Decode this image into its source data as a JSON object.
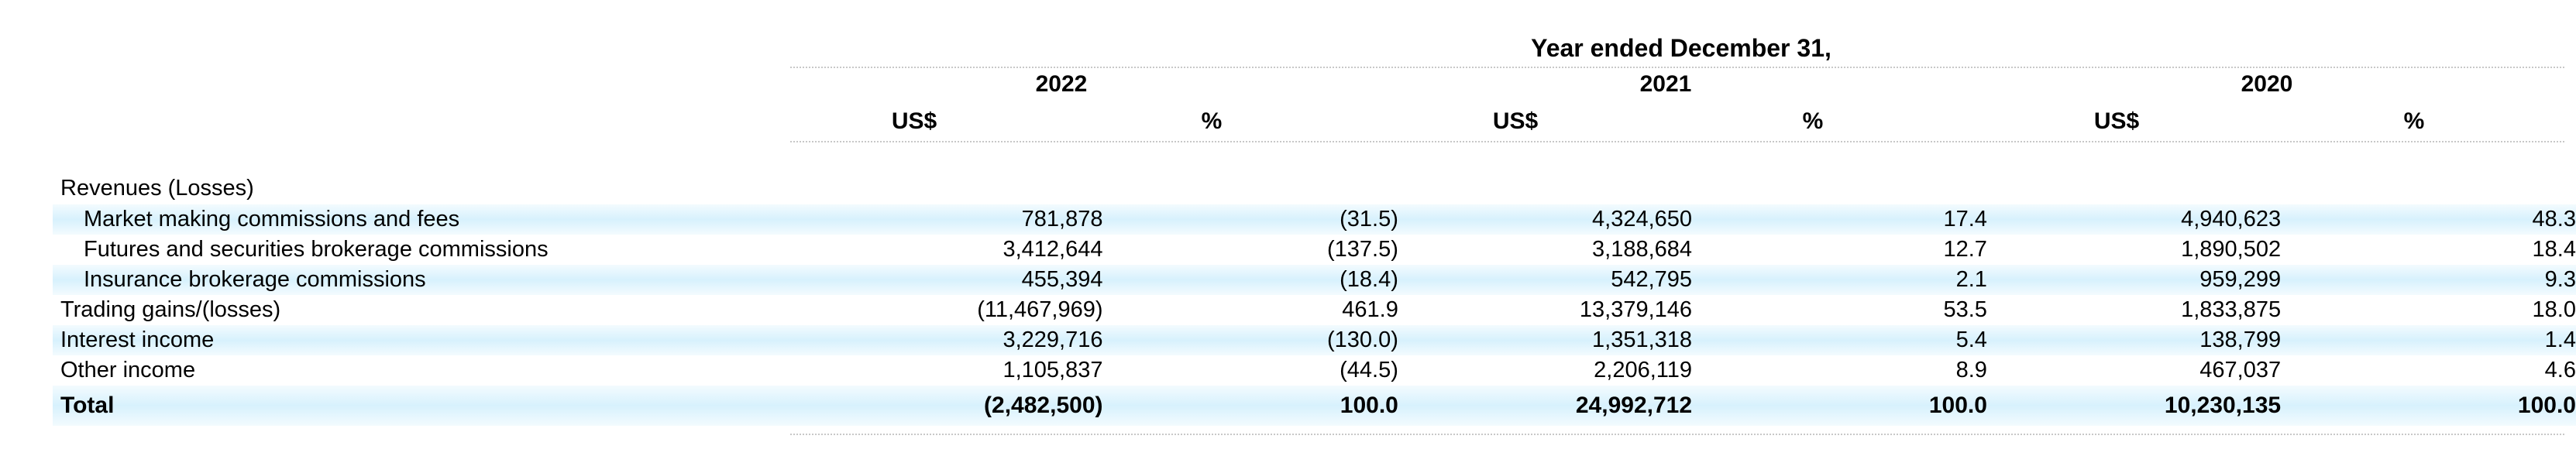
{
  "header": {
    "period": "Year ended December 31,",
    "years": [
      "2022",
      "2021",
      "2020"
    ],
    "units": [
      "US$",
      "%",
      "US$",
      "%",
      "US$",
      "%"
    ]
  },
  "rows": [
    {
      "label": "Revenues (Losses)",
      "values": [
        "",
        "",
        "",
        "",
        "",
        ""
      ]
    },
    {
      "label": "Market making commissions and fees",
      "values": [
        "781,878",
        "(31.5)",
        "4,324,650",
        "17.4",
        "4,940,623",
        "48.3"
      ]
    },
    {
      "label": "Futures and securities brokerage commissions",
      "values": [
        "3,412,644",
        "(137.5)",
        "3,188,684",
        "12.7",
        "1,890,502",
        "18.4"
      ]
    },
    {
      "label": "Insurance brokerage commissions",
      "values": [
        "455,394",
        "(18.4)",
        "542,795",
        "2.1",
        "959,299",
        "9.3"
      ]
    },
    {
      "label": "Trading gains/(losses)",
      "values": [
        "(11,467,969)",
        "461.9",
        "13,379,146",
        "53.5",
        "1,833,875",
        "18.0"
      ]
    },
    {
      "label": "Interest income",
      "values": [
        "3,229,716",
        "(130.0)",
        "1,351,318",
        "5.4",
        "138,799",
        "1.4"
      ]
    },
    {
      "label": "Other income",
      "values": [
        "1,105,837",
        "(44.5)",
        "2,206,119",
        "8.9",
        "467,037",
        "4.6"
      ]
    },
    {
      "label": "Total",
      "values": [
        "(2,482,500)",
        "100.0",
        "24,992,712",
        "100.0",
        "10,230,135",
        "100.0"
      ]
    }
  ]
}
